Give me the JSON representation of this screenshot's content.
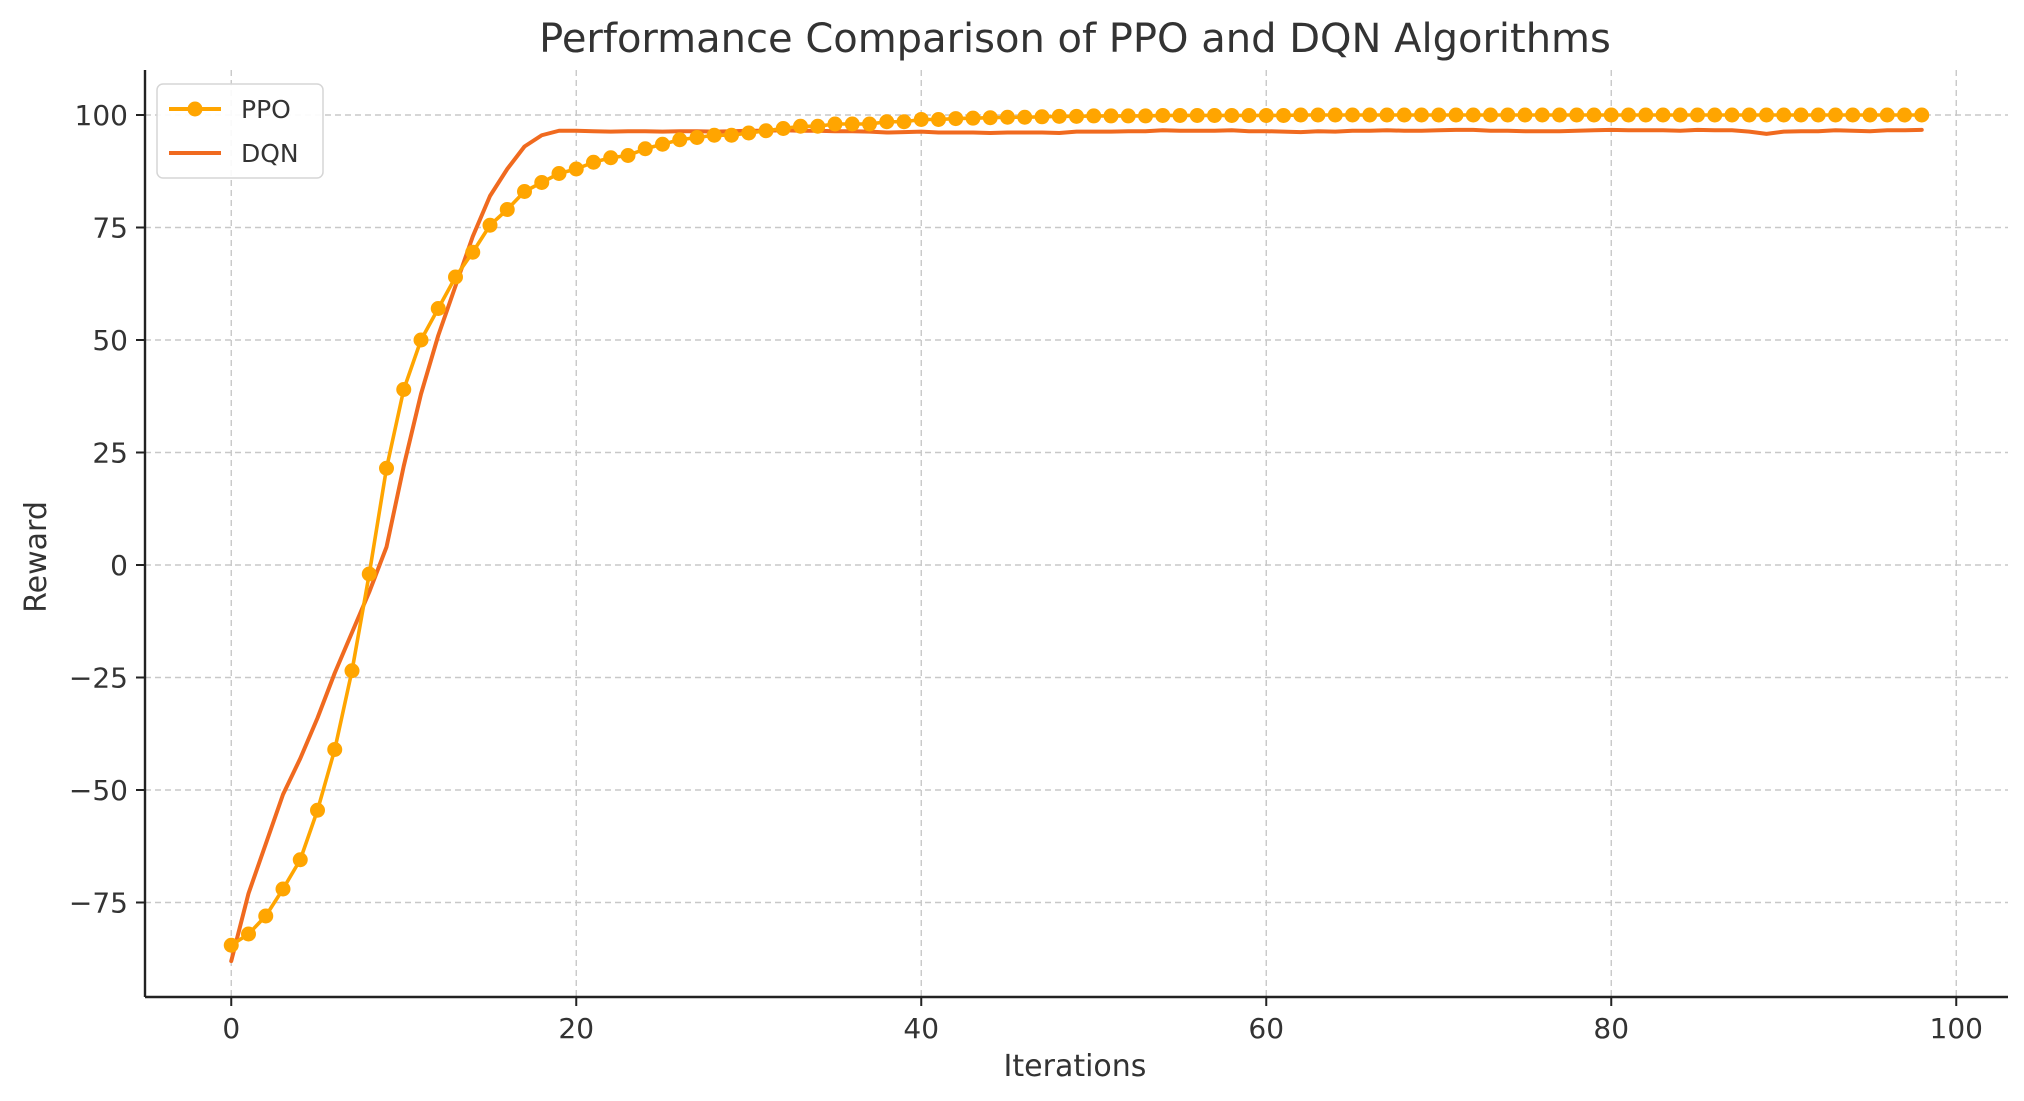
{
  "chart_data": {
    "type": "line",
    "title": "Performance Comparison of PPO and DQN Algorithms",
    "xlabel": "Iterations",
    "ylabel": "Reward",
    "xlim": [
      -5,
      103
    ],
    "ylim": [
      -96,
      110
    ],
    "xticks": [
      0,
      20,
      40,
      60,
      80,
      100
    ],
    "yticks": [
      100,
      75,
      50,
      25,
      0,
      -25,
      -50,
      -75
    ],
    "xtick_labels": [
      "0",
      "20",
      "40",
      "60",
      "80",
      "100"
    ],
    "ytick_labels": [
      "100",
      "75",
      "50",
      "25",
      "0",
      "−25",
      "−50",
      "−75"
    ],
    "grid": true,
    "legend": "top-left",
    "colors": {
      "PPO": "#ffa500",
      "DQN": "#f06a1f",
      "grid": "#c8c8c8",
      "axis": "#222222"
    },
    "x": [
      0,
      1,
      2,
      3,
      4,
      5,
      6,
      7,
      8,
      9,
      10,
      11,
      12,
      13,
      14,
      15,
      16,
      17,
      18,
      19,
      20,
      21,
      22,
      23,
      24,
      25,
      26,
      27,
      28,
      29,
      30,
      31,
      32,
      33,
      34,
      35,
      36,
      37,
      38,
      39,
      40,
      41,
      42,
      43,
      44,
      45,
      46,
      47,
      48,
      49,
      50,
      51,
      52,
      53,
      54,
      55,
      56,
      57,
      58,
      59,
      60,
      61,
      62,
      63,
      64,
      65,
      66,
      67,
      68,
      69,
      70,
      71,
      72,
      73,
      74,
      75,
      76,
      77,
      78,
      79,
      80,
      81,
      82,
      83,
      84,
      85,
      86,
      87,
      88,
      89,
      90,
      91,
      92,
      93,
      94,
      95,
      96,
      97,
      98
    ],
    "series": [
      {
        "name": "PPO",
        "marker": "circle",
        "values": [
          -84.5,
          -82,
          -78,
          -72,
          -65.5,
          -54.5,
          -41,
          -23.5,
          -2,
          21.5,
          39,
          50,
          57,
          64,
          69.5,
          75.5,
          79,
          83,
          85,
          87,
          88,
          89.5,
          90.5,
          91,
          92.5,
          93.5,
          94.5,
          95,
          95.5,
          95.5,
          96,
          96.5,
          97,
          97.5,
          97.5,
          98,
          98,
          98,
          98.5,
          98.5,
          99,
          99,
          99.2,
          99.3,
          99.4,
          99.5,
          99.5,
          99.6,
          99.7,
          99.7,
          99.8,
          99.8,
          99.8,
          99.8,
          99.9,
          99.9,
          99.9,
          99.9,
          99.9,
          99.9,
          99.9,
          99.9,
          100,
          100,
          100,
          100,
          100,
          100,
          100,
          100,
          100,
          100,
          100,
          100,
          100,
          100,
          100,
          100,
          100,
          100,
          100,
          100,
          100,
          100,
          100,
          100,
          100,
          100,
          100,
          100,
          100,
          100,
          100,
          100,
          100,
          100,
          100,
          100,
          100
        ]
      },
      {
        "name": "DQN",
        "values": [
          -88,
          -73,
          -62,
          -51,
          -43,
          -34,
          -24,
          -15,
          -6,
          4,
          22,
          38,
          51,
          62,
          73,
          82,
          88,
          93,
          95.5,
          96.5,
          96.5,
          96.4,
          96.3,
          96.4,
          96.4,
          96.3,
          96.4,
          96.4,
          96.3,
          96.4,
          96.5,
          96.5,
          96.6,
          96.5,
          96.5,
          96.4,
          96.4,
          96.3,
          96.1,
          96.2,
          96.3,
          96.1,
          96.1,
          96.1,
          96.0,
          96.1,
          96.1,
          96.1,
          96.0,
          96.3,
          96.3,
          96.3,
          96.4,
          96.4,
          96.6,
          96.5,
          96.5,
          96.5,
          96.6,
          96.4,
          96.4,
          96.3,
          96.2,
          96.4,
          96.3,
          96.5,
          96.5,
          96.6,
          96.5,
          96.5,
          96.6,
          96.7,
          96.7,
          96.5,
          96.5,
          96.4,
          96.4,
          96.4,
          96.5,
          96.6,
          96.7,
          96.6,
          96.6,
          96.6,
          96.5,
          96.7,
          96.6,
          96.6,
          96.3,
          95.8,
          96.3,
          96.4,
          96.4,
          96.6,
          96.5,
          96.4,
          96.6,
          96.6,
          96.7
        ]
      }
    ]
  }
}
